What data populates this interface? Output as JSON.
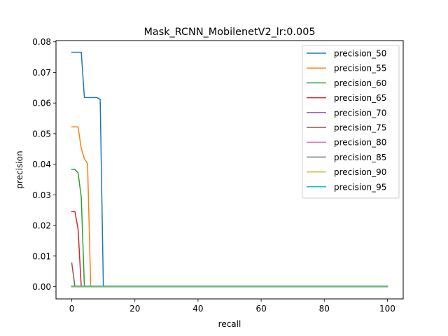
{
  "chart_data": {
    "type": "line",
    "title": "Mask_RCNN_MobilenetV2_lr:0.005",
    "xlabel": "recall",
    "ylabel": "precision",
    "xlim": [
      -5,
      105
    ],
    "ylim": [
      -0.004,
      0.0804
    ],
    "xticks": [
      0,
      20,
      40,
      60,
      80,
      100
    ],
    "xtick_labels": [
      "0",
      "20",
      "40",
      "60",
      "80",
      "100"
    ],
    "yticks": [
      0.0,
      0.01,
      0.02,
      0.03,
      0.04,
      0.05,
      0.06,
      0.07,
      0.08
    ],
    "ytick_labels": [
      "0.00",
      "0.01",
      "0.02",
      "0.03",
      "0.04",
      "0.05",
      "0.06",
      "0.07",
      "0.08"
    ],
    "grid": false,
    "legend_position": "top-right",
    "series": [
      {
        "name": "precision_50",
        "color": "#1f77b4",
        "x": [
          0,
          1,
          2,
          3,
          4,
          5,
          6,
          7,
          8,
          9,
          10,
          100
        ],
        "y": [
          0.0766,
          0.0766,
          0.0766,
          0.0766,
          0.0618,
          0.0618,
          0.0618,
          0.0618,
          0.0618,
          0.0612,
          0,
          0
        ]
      },
      {
        "name": "precision_55",
        "color": "#ff7f0e",
        "x": [
          0,
          1,
          2,
          3,
          4,
          5,
          6,
          100
        ],
        "y": [
          0.0522,
          0.0522,
          0.0522,
          0.0452,
          0.0418,
          0.0402,
          0,
          0
        ]
      },
      {
        "name": "precision_60",
        "color": "#2ca02c",
        "x": [
          0,
          1,
          2,
          3,
          4,
          100
        ],
        "y": [
          0.0383,
          0.0383,
          0.0372,
          0.0293,
          0,
          0
        ]
      },
      {
        "name": "precision_65",
        "color": "#d62728",
        "x": [
          0,
          1,
          2,
          3,
          100
        ],
        "y": [
          0.0245,
          0.0245,
          0.0188,
          0,
          0
        ]
      },
      {
        "name": "precision_70",
        "color": "#9467bd",
        "x": [
          0,
          100
        ],
        "y": [
          0,
          0
        ]
      },
      {
        "name": "precision_75",
        "color": "#8c564b",
        "x": [
          0,
          1,
          100
        ],
        "y": [
          0.0077,
          0,
          0
        ]
      },
      {
        "name": "precision_80",
        "color": "#e377c2",
        "x": [
          0,
          100
        ],
        "y": [
          0,
          0
        ]
      },
      {
        "name": "precision_85",
        "color": "#7f7f7f",
        "x": [
          0,
          100
        ],
        "y": [
          0,
          0
        ]
      },
      {
        "name": "precision_90",
        "color": "#bcbd22",
        "x": [
          0,
          100
        ],
        "y": [
          0,
          0
        ]
      },
      {
        "name": "precision_95",
        "color": "#17becf",
        "x": [
          0,
          100
        ],
        "y": [
          0.0002,
          0.0002
        ]
      }
    ]
  }
}
